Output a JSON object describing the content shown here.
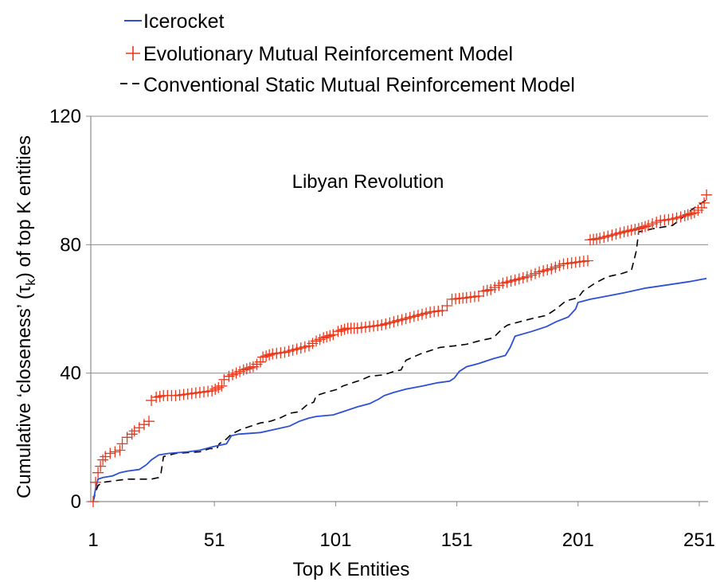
{
  "chart_data": {
    "type": "line",
    "annotation": "Libyan Revolution",
    "xlabel": "Top K Entities",
    "ylabel": "Cumulative ‘closeness’ (τk) of top K entities",
    "ylabel_parts": {
      "before": "Cumulative ‘closeness’ (τ",
      "sub": "k",
      "after": ") of top K entities"
    },
    "xlim": [
      1,
      254
    ],
    "ylim": [
      0,
      120
    ],
    "xticks": [
      "1",
      "51",
      "101",
      "151",
      "201",
      "251"
    ],
    "xtick_values": [
      1,
      51,
      101,
      151,
      201,
      251
    ],
    "yticks": [
      "0",
      "40",
      "80",
      "120"
    ],
    "ytick_values": [
      0,
      40,
      80,
      120
    ],
    "grid": "horizontal",
    "legend_position": "top-left",
    "series": [
      {
        "name": "Icerocket",
        "color": "#2e4fd1",
        "style": "solid",
        "points": [
          [
            1,
            0
          ],
          [
            2,
            4
          ],
          [
            3,
            7
          ],
          [
            5,
            7.5
          ],
          [
            9,
            8
          ],
          [
            12,
            9
          ],
          [
            15,
            9.5
          ],
          [
            20,
            10
          ],
          [
            23,
            11.5
          ],
          [
            25,
            13
          ],
          [
            28,
            14.5
          ],
          [
            32,
            15
          ],
          [
            40,
            15.5
          ],
          [
            45,
            16
          ],
          [
            50,
            17
          ],
          [
            53,
            17.5
          ],
          [
            56,
            18
          ],
          [
            58,
            20.5
          ],
          [
            61,
            21
          ],
          [
            70,
            21.5
          ],
          [
            76,
            22.5
          ],
          [
            82,
            23.5
          ],
          [
            86,
            25
          ],
          [
            90,
            26
          ],
          [
            93,
            26.5
          ],
          [
            100,
            27
          ],
          [
            104,
            28
          ],
          [
            110,
            29.5
          ],
          [
            115,
            30.5
          ],
          [
            119,
            32
          ],
          [
            121,
            33
          ],
          [
            125,
            34
          ],
          [
            130,
            35
          ],
          [
            137,
            36
          ],
          [
            143,
            37
          ],
          [
            148,
            37.5
          ],
          [
            150,
            38.5
          ],
          [
            152,
            40.5
          ],
          [
            155,
            42
          ],
          [
            160,
            43
          ],
          [
            166,
            44.5
          ],
          [
            171,
            45.5
          ],
          [
            173,
            48
          ],
          [
            175,
            51.5
          ],
          [
            182,
            53
          ],
          [
            188,
            54.5
          ],
          [
            192,
            56
          ],
          [
            197,
            57.5
          ],
          [
            200,
            60
          ],
          [
            201,
            62
          ],
          [
            206,
            63
          ],
          [
            213,
            64
          ],
          [
            220,
            65
          ],
          [
            229,
            66.5
          ],
          [
            238,
            67.5
          ],
          [
            247,
            68.5
          ],
          [
            254,
            69.5
          ]
        ]
      },
      {
        "name": "Evolutionary Mutual Reinforcement Model",
        "color": "#e8381c",
        "style": "markers",
        "points": [
          [
            1,
            0
          ],
          [
            2,
            6
          ],
          [
            3,
            9
          ],
          [
            4,
            11
          ],
          [
            5,
            13
          ],
          [
            6,
            14
          ],
          [
            8,
            15
          ],
          [
            10,
            15.5
          ],
          [
            12,
            16
          ],
          [
            13,
            18
          ],
          [
            15,
            20
          ],
          [
            17,
            21
          ],
          [
            18,
            22
          ],
          [
            20,
            23
          ],
          [
            22,
            24
          ],
          [
            24,
            25
          ],
          [
            25,
            31.5
          ],
          [
            27,
            32.5
          ],
          [
            30,
            33
          ],
          [
            35,
            33
          ],
          [
            40,
            33.5
          ],
          [
            45,
            34
          ],
          [
            50,
            34.5
          ],
          [
            54,
            36
          ],
          [
            55,
            38
          ],
          [
            57,
            39
          ],
          [
            60,
            40
          ],
          [
            63,
            41
          ],
          [
            67,
            42
          ],
          [
            70,
            43.5
          ],
          [
            71,
            45
          ],
          [
            75,
            46
          ],
          [
            80,
            46.5
          ],
          [
            85,
            47.5
          ],
          [
            90,
            48.5
          ],
          [
            93,
            50
          ],
          [
            96,
            51
          ],
          [
            100,
            52
          ],
          [
            102,
            53
          ],
          [
            106,
            54
          ],
          [
            110,
            54
          ],
          [
            115,
            54.5
          ],
          [
            120,
            55
          ],
          [
            125,
            56
          ],
          [
            130,
            57
          ],
          [
            135,
            58
          ],
          [
            140,
            59
          ],
          [
            145,
            59.5
          ],
          [
            147,
            61
          ],
          [
            149,
            63
          ],
          [
            155,
            63.5
          ],
          [
            160,
            64
          ],
          [
            162,
            65.5
          ],
          [
            165,
            66
          ],
          [
            170,
            68
          ],
          [
            175,
            69
          ],
          [
            180,
            70
          ],
          [
            185,
            71.5
          ],
          [
            190,
            72.5
          ],
          [
            195,
            74
          ],
          [
            200,
            74.5
          ],
          [
            205,
            75
          ],
          [
            206,
            81.5
          ],
          [
            210,
            82
          ],
          [
            215,
            83
          ],
          [
            220,
            84
          ],
          [
            226,
            85
          ],
          [
            230,
            86
          ],
          [
            235,
            87.5
          ],
          [
            240,
            88
          ],
          [
            245,
            89
          ],
          [
            249,
            90
          ],
          [
            252,
            91.5
          ],
          [
            253,
            93
          ],
          [
            254,
            95.5
          ]
        ]
      },
      {
        "name": "Conventional Static Mutual Reinforcement Model",
        "color": "#000000",
        "style": "dashed",
        "points": [
          [
            1,
            0
          ],
          [
            2,
            3
          ],
          [
            3,
            5
          ],
          [
            5,
            6
          ],
          [
            10,
            6.5
          ],
          [
            15,
            7
          ],
          [
            25,
            7
          ],
          [
            28,
            7.5
          ],
          [
            29,
            9
          ],
          [
            30,
            14
          ],
          [
            35,
            15
          ],
          [
            45,
            15.5
          ],
          [
            49,
            16.5
          ],
          [
            52,
            16.5
          ],
          [
            53,
            18
          ],
          [
            56,
            19.5
          ],
          [
            58,
            21
          ],
          [
            62,
            22.5
          ],
          [
            66,
            23.5
          ],
          [
            70,
            24.5
          ],
          [
            74,
            25
          ],
          [
            78,
            26
          ],
          [
            82,
            27.5
          ],
          [
            86,
            28
          ],
          [
            89,
            30
          ],
          [
            92,
            31
          ],
          [
            93,
            33
          ],
          [
            97,
            34
          ],
          [
            102,
            35
          ],
          [
            104,
            36
          ],
          [
            108,
            37
          ],
          [
            112,
            38
          ],
          [
            115,
            39
          ],
          [
            121,
            39.5
          ],
          [
            125,
            40.5
          ],
          [
            128,
            41
          ],
          [
            130,
            44
          ],
          [
            136,
            46
          ],
          [
            140,
            47
          ],
          [
            144,
            48
          ],
          [
            150,
            48.5
          ],
          [
            155,
            49
          ],
          [
            160,
            50
          ],
          [
            166,
            51
          ],
          [
            170,
            54
          ],
          [
            172,
            55
          ],
          [
            177,
            56
          ],
          [
            182,
            57
          ],
          [
            188,
            58
          ],
          [
            192,
            60
          ],
          [
            196,
            62.5
          ],
          [
            201,
            63.5
          ],
          [
            203,
            65.5
          ],
          [
            208,
            68
          ],
          [
            213,
            70
          ],
          [
            219,
            71
          ],
          [
            223,
            72
          ],
          [
            225,
            78
          ],
          [
            226,
            84
          ],
          [
            232,
            85
          ],
          [
            240,
            86
          ],
          [
            245,
            89
          ],
          [
            248,
            91
          ],
          [
            252,
            93
          ],
          [
            254,
            94
          ]
        ]
      }
    ]
  }
}
